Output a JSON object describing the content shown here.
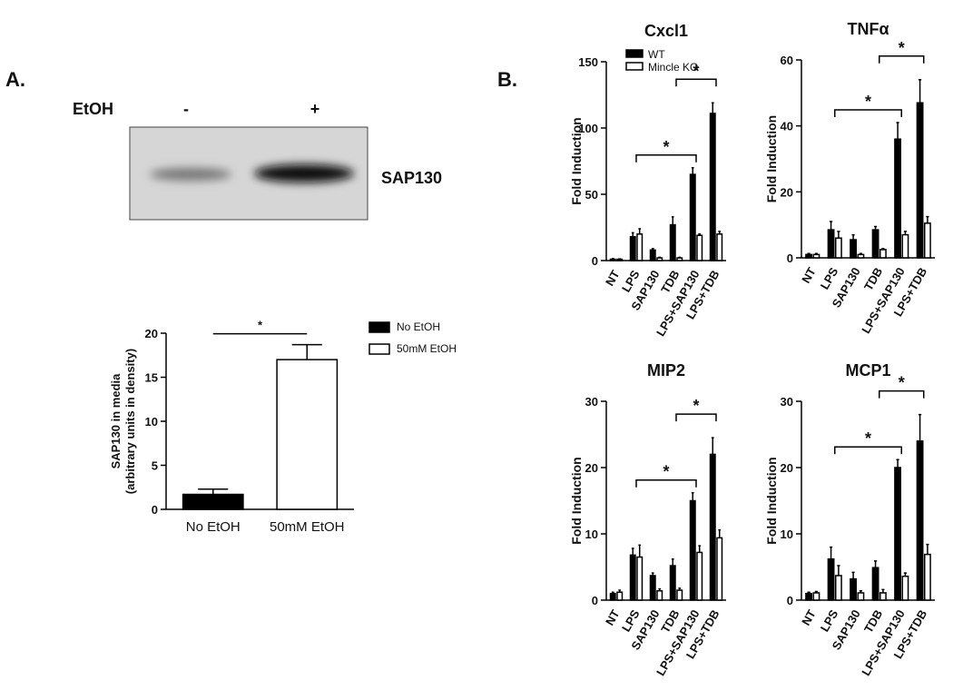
{
  "panel_a_label": "A.",
  "panel_b_label": "B.",
  "blot": {
    "treatment_label": "EtOH",
    "lanes": [
      "-",
      "+"
    ],
    "band_label": "SAP130"
  },
  "chart_data": [
    {
      "type": "bar",
      "ylabel": [
        "SAP130 in media",
        "(arbitrary units in density)"
      ],
      "categories": [
        "No EtOH",
        "50mM EtOH"
      ],
      "series": [
        {
          "name": "No EtOH",
          "color": "#000000",
          "values": [
            1.7,
            null
          ],
          "errors": [
            0.6,
            null
          ]
        },
        {
          "name": "50mM EtOH",
          "color": "#ffffff",
          "values": [
            null,
            17
          ],
          "errors": [
            null,
            1.7
          ]
        }
      ],
      "ylim": [
        0,
        20
      ],
      "yticks": [
        0,
        5,
        10,
        15,
        20
      ],
      "legend": "right",
      "annotations": [
        "*"
      ]
    },
    {
      "type": "bar",
      "title": "Cxcl1",
      "ylabel": "Fold Induction",
      "categories": [
        "NT",
        "LPS",
        "SAP130",
        "TDB",
        "LPS+SAP130",
        "LPS+TDB"
      ],
      "series": [
        {
          "name": "WT",
          "color": "#000000",
          "values": [
            1,
            18,
            8,
            27,
            65,
            111
          ],
          "errors": [
            0.5,
            3,
            1,
            6,
            5,
            8
          ]
        },
        {
          "name": "Mincle KO",
          "color": "#ffffff",
          "values": [
            1,
            20,
            2,
            2,
            19,
            20
          ],
          "errors": [
            0.3,
            4,
            0.5,
            0.5,
            1,
            2
          ]
        }
      ],
      "ylim": [
        0,
        150
      ],
      "yticks": [
        0,
        50,
        100,
        150
      ],
      "legend": "top-left",
      "annotations": [
        "*",
        "*"
      ]
    },
    {
      "type": "bar",
      "title": "TNFα",
      "ylabel": "Fold Induction",
      "categories": [
        "NT",
        "LPS",
        "SAP130",
        "TDB",
        "LPS+SAP130",
        "LPS+TDB"
      ],
      "series": [
        {
          "name": "WT",
          "color": "#000000",
          "values": [
            1,
            8.5,
            5.5,
            8.5,
            36,
            47
          ],
          "errors": [
            0.3,
            2.5,
            1.5,
            1,
            5,
            7
          ]
        },
        {
          "name": "Mincle KO",
          "color": "#ffffff",
          "values": [
            1,
            6,
            1,
            2.5,
            7,
            10.5
          ],
          "errors": [
            0.3,
            2,
            0.3,
            0.3,
            1,
            2
          ]
        }
      ],
      "ylim": [
        0,
        60
      ],
      "yticks": [
        0,
        20,
        40,
        60
      ],
      "annotations": [
        "*",
        "*"
      ]
    },
    {
      "type": "bar",
      "title": "MIP2",
      "ylabel": "Fold Induction",
      "categories": [
        "NT",
        "LPS",
        "SAP130",
        "TDB",
        "LPS+SAP130",
        "LPS+TDB"
      ],
      "series": [
        {
          "name": "WT",
          "color": "#000000",
          "values": [
            1,
            6.8,
            3.7,
            5.2,
            15,
            22
          ],
          "errors": [
            0.2,
            1,
            0.4,
            1,
            1.2,
            2.5
          ]
        },
        {
          "name": "Mincle KO",
          "color": "#ffffff",
          "values": [
            1.2,
            6.5,
            1.4,
            1.5,
            7.2,
            9.4
          ],
          "errors": [
            0.3,
            1.8,
            0.3,
            0.3,
            1,
            1.2
          ]
        }
      ],
      "ylim": [
        0,
        30
      ],
      "yticks": [
        0,
        10,
        20,
        30
      ],
      "annotations": [
        "*",
        "*"
      ]
    },
    {
      "type": "bar",
      "title": "MCP1",
      "ylabel": "Fold Induction",
      "categories": [
        "NT",
        "LPS",
        "SAP130",
        "TDB",
        "LPS+SAP130",
        "LPS+TDB"
      ],
      "series": [
        {
          "name": "WT",
          "color": "#000000",
          "values": [
            1,
            6.2,
            3.2,
            4.9,
            20,
            24
          ],
          "errors": [
            0.2,
            1.8,
            1,
            1,
            1.2,
            4
          ]
        },
        {
          "name": "Mincle KO",
          "color": "#ffffff",
          "values": [
            1.1,
            3.7,
            1.1,
            1.1,
            3.6,
            6.9
          ],
          "errors": [
            0.2,
            1.5,
            0.3,
            0.5,
            0.5,
            1.5
          ]
        }
      ],
      "ylim": [
        0,
        30
      ],
      "yticks": [
        0,
        10,
        20,
        30
      ],
      "annotations": [
        "*",
        "*"
      ]
    }
  ]
}
